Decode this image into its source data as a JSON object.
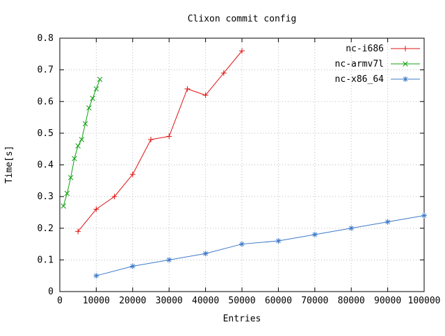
{
  "title": "Clixon commit config",
  "axes": {
    "xlabel": "Entries",
    "ylabel": "Time[s]"
  },
  "colors": {
    "series1": "#e01010",
    "series2": "#10a010",
    "series3": "#3b78c8",
    "grid": "#bbbbbb",
    "border": "#000000",
    "text": "#000000",
    "background": "#ffffff"
  },
  "chart_data": {
    "type": "line",
    "title": "Clixon commit config",
    "xlabel": "Entries",
    "ylabel": "Time[s]",
    "xlim": [
      0,
      100000
    ],
    "ylim": [
      0,
      0.8
    ],
    "xticks": [
      0,
      10000,
      20000,
      30000,
      40000,
      50000,
      60000,
      70000,
      80000,
      90000,
      100000
    ],
    "yticks": [
      0,
      0.1,
      0.2,
      0.3,
      0.4,
      0.5,
      0.6,
      0.7,
      0.8
    ],
    "grid": true,
    "legend_position": "top-right-inside",
    "series": [
      {
        "name": "nc-i686",
        "color": "#e01010",
        "marker": "plus",
        "x": [
          5000,
          10000,
          15000,
          20000,
          25000,
          30000,
          35000,
          40000,
          45000,
          50000
        ],
        "y": [
          0.19,
          0.26,
          0.3,
          0.37,
          0.48,
          0.49,
          0.64,
          0.62,
          0.69,
          0.76
        ]
      },
      {
        "name": "nc-armv7l",
        "color": "#10a010",
        "marker": "cross",
        "x": [
          1000,
          2000,
          3000,
          4000,
          5000,
          6000,
          7000,
          8000,
          9000,
          10000,
          11000
        ],
        "y": [
          0.27,
          0.31,
          0.36,
          0.42,
          0.46,
          0.48,
          0.53,
          0.58,
          0.61,
          0.64,
          0.67
        ]
      },
      {
        "name": "nc-x86_64",
        "color": "#3b78c8",
        "marker": "star",
        "x": [
          10000,
          20000,
          30000,
          40000,
          50000,
          60000,
          70000,
          80000,
          90000,
          100000
        ],
        "y": [
          0.05,
          0.08,
          0.1,
          0.12,
          0.15,
          0.16,
          0.18,
          0.2,
          0.22,
          0.24
        ]
      }
    ]
  }
}
